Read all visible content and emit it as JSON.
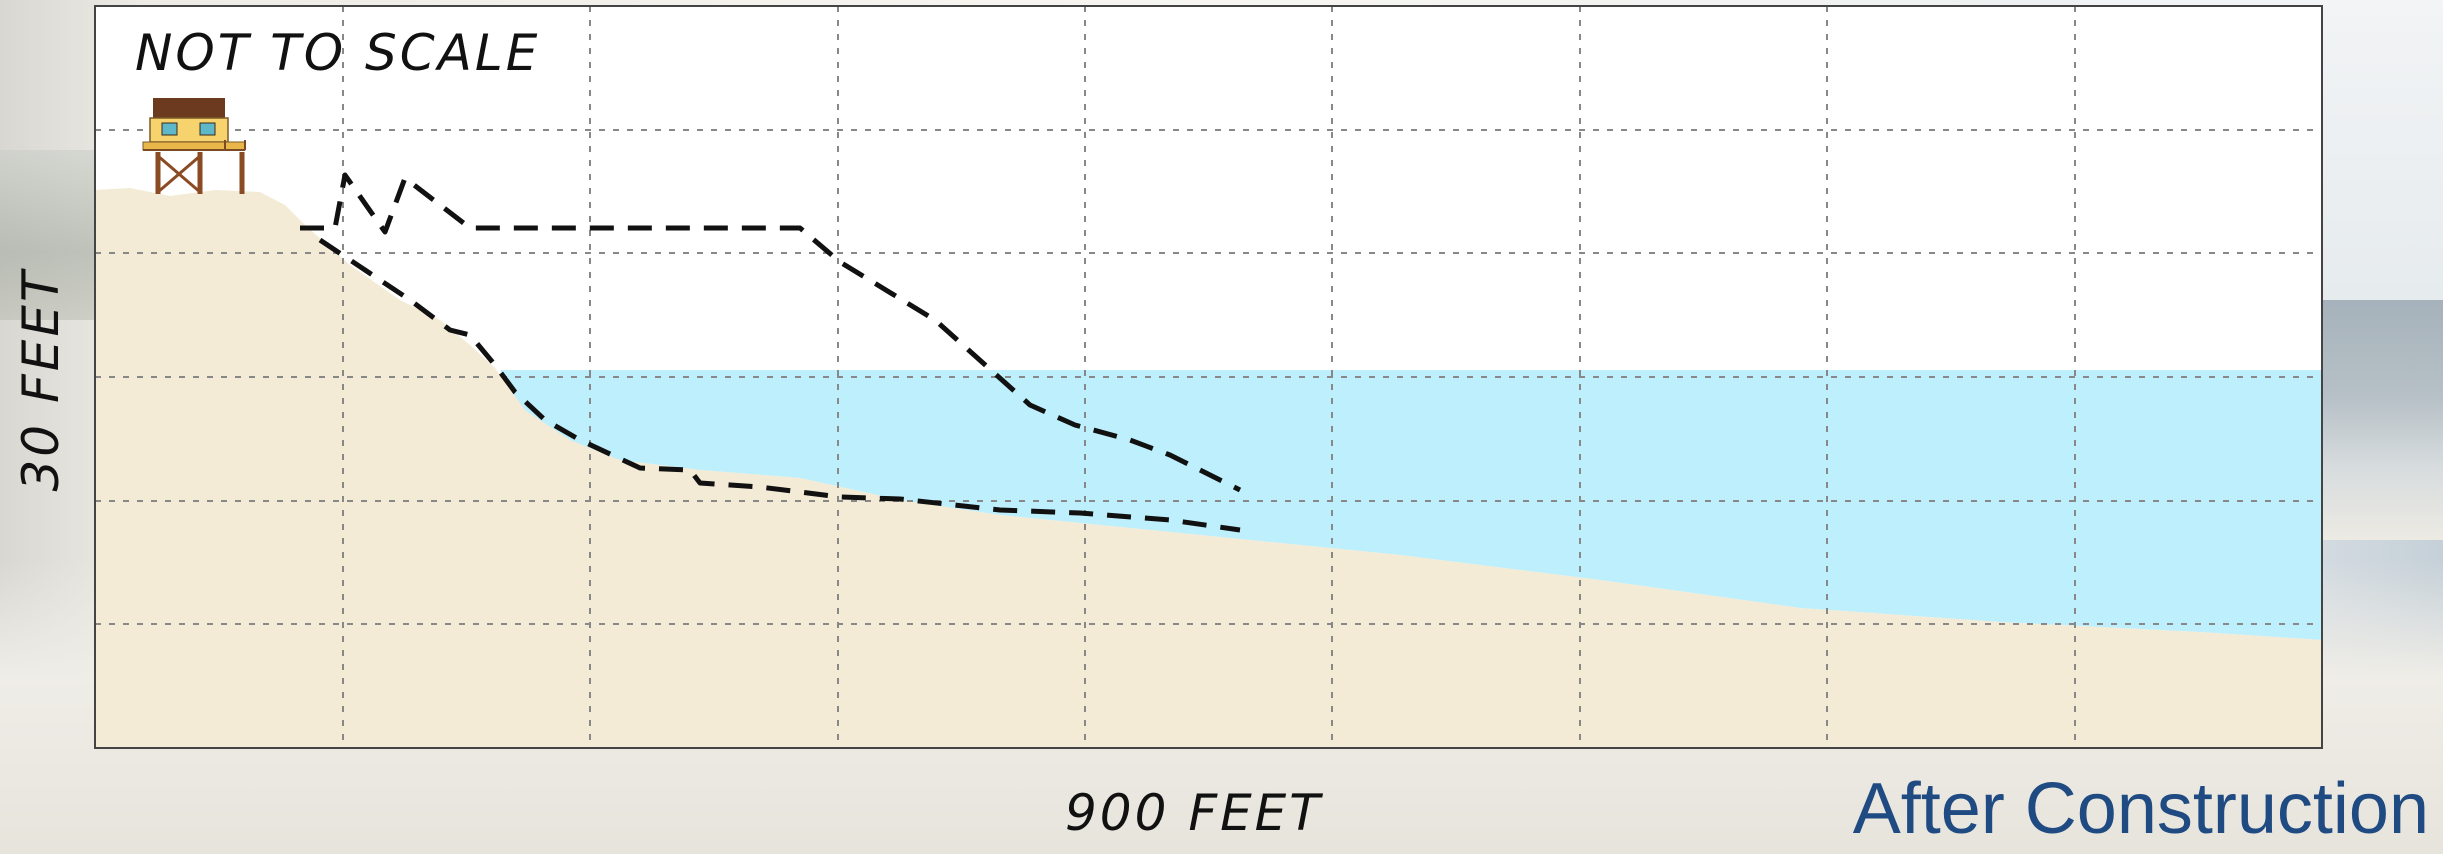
{
  "page_title": "After Construction",
  "diagram": {
    "scale_note": "NOT TO SCALE",
    "y_axis_label": "30 FEET",
    "x_axis_label": "900 FEET",
    "house_icon": "beach-house-on-stilts-icon"
  },
  "colors": {
    "sand": "#f3ebd6",
    "water": "#bdeffc",
    "grid": "#888888",
    "profile_line": "#111111",
    "title": "#1f4b82"
  }
}
